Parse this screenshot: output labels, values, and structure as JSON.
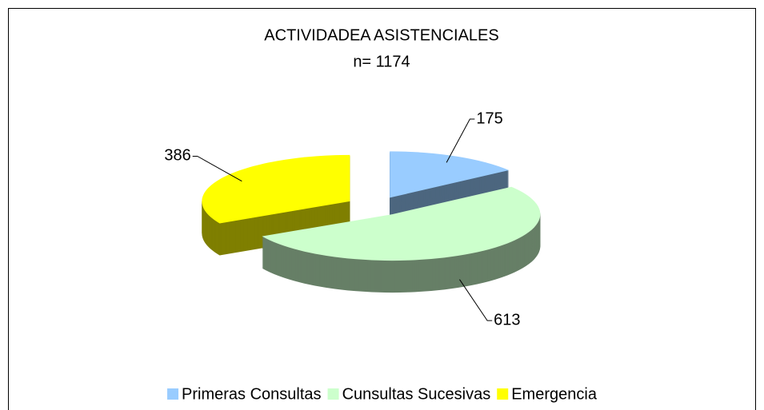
{
  "chart_data": {
    "type": "pie3d",
    "title": "ACTIVIDADEA ASISTENCIALES",
    "subtitle": "n= 1174",
    "categories": [
      "Primeras Consultas",
      "Cunsultas Sucesivas",
      "Emergencia"
    ],
    "values": [
      175,
      613,
      386
    ],
    "colors": [
      "#99ccff",
      "#ccffcc",
      "#ffff00"
    ],
    "legend": "bottom"
  }
}
